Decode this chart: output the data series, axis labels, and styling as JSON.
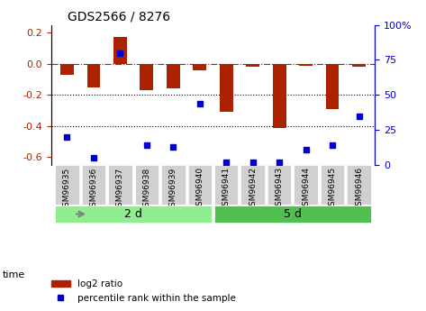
{
  "title": "GDS2566 / 8276",
  "samples": [
    "GSM96935",
    "GSM96936",
    "GSM96937",
    "GSM96938",
    "GSM96939",
    "GSM96940",
    "GSM96941",
    "GSM96942",
    "GSM96943",
    "GSM96944",
    "GSM96945",
    "GSM96946"
  ],
  "log2_ratio": [
    -0.07,
    -0.15,
    0.17,
    -0.17,
    -0.16,
    -0.04,
    -0.31,
    -0.02,
    -0.41,
    -0.01,
    -0.29,
    -0.02
  ],
  "percentile_rank": [
    20,
    5,
    80,
    14,
    13,
    44,
    2,
    2,
    2,
    11,
    14,
    35
  ],
  "group_labels": [
    "2 d",
    "5 d"
  ],
  "group_splits": [
    6,
    6
  ],
  "bar_color": "#AA2200",
  "dot_color": "#0000CC",
  "ylim_left": [
    -0.65,
    0.25
  ],
  "ylim_right": [
    0,
    100
  ],
  "yticks_left": [
    -0.6,
    -0.4,
    -0.2,
    0.0,
    0.2
  ],
  "yticks_right": [
    0,
    25,
    50,
    75,
    100
  ],
  "group1_color": "#90EE90",
  "group2_color": "#50C050",
  "label_log2": "log2 ratio",
  "label_pct": "percentile rank within the sample",
  "time_label": "time"
}
